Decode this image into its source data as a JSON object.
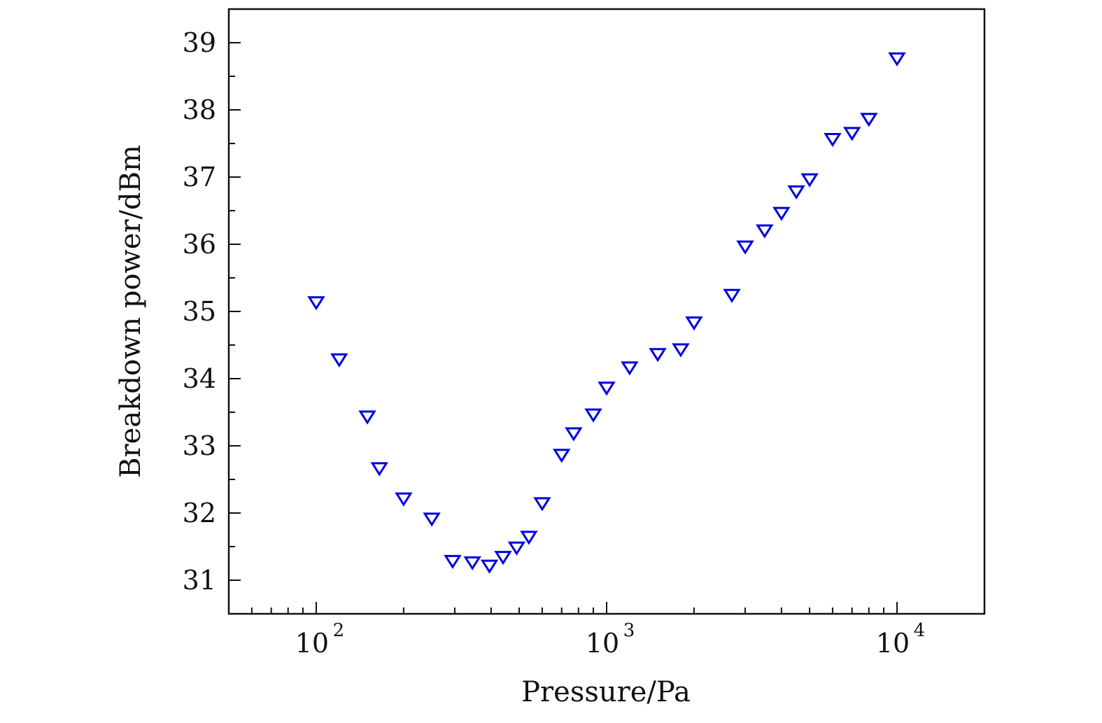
{
  "colors": {
    "marker": "#0000dd",
    "axis": "#111111",
    "background": "#ffffff"
  },
  "chart_data": {
    "type": "scatter",
    "title": "",
    "xlabel": "Pressure/Pa",
    "ylabel": "Breakdown power/dBm",
    "x_scale": "log",
    "xlim": [
      50,
      20000
    ],
    "ylim": [
      30.5,
      39.5
    ],
    "x_ticks": [
      {
        "value": 100,
        "base": "10",
        "exp": "2"
      },
      {
        "value": 1000,
        "base": "10",
        "exp": "3"
      },
      {
        "value": 10000,
        "base": "10",
        "exp": "4"
      }
    ],
    "y_ticks": [
      "31",
      "32",
      "33",
      "34",
      "35",
      "36",
      "37",
      "38",
      "39"
    ],
    "marker": "triangle-down-open",
    "grid": false,
    "legend": "none",
    "series": [
      {
        "x": [
          100,
          120,
          150,
          165,
          200,
          250,
          295,
          345,
          395,
          440,
          490,
          540,
          600,
          700,
          770,
          900,
          1000,
          1200,
          1500,
          1800,
          2000,
          2700,
          3000,
          3500,
          4000,
          4500,
          5000,
          6000,
          7000,
          8000,
          10000
        ],
        "y": [
          35.15,
          34.3,
          33.45,
          32.68,
          32.23,
          31.93,
          31.3,
          31.28,
          31.23,
          31.36,
          31.5,
          31.66,
          32.16,
          32.88,
          33.2,
          33.48,
          33.88,
          34.18,
          34.38,
          34.45,
          34.85,
          35.26,
          35.98,
          36.22,
          36.48,
          36.8,
          36.98,
          37.58,
          37.67,
          37.88,
          38.78
        ]
      }
    ]
  }
}
